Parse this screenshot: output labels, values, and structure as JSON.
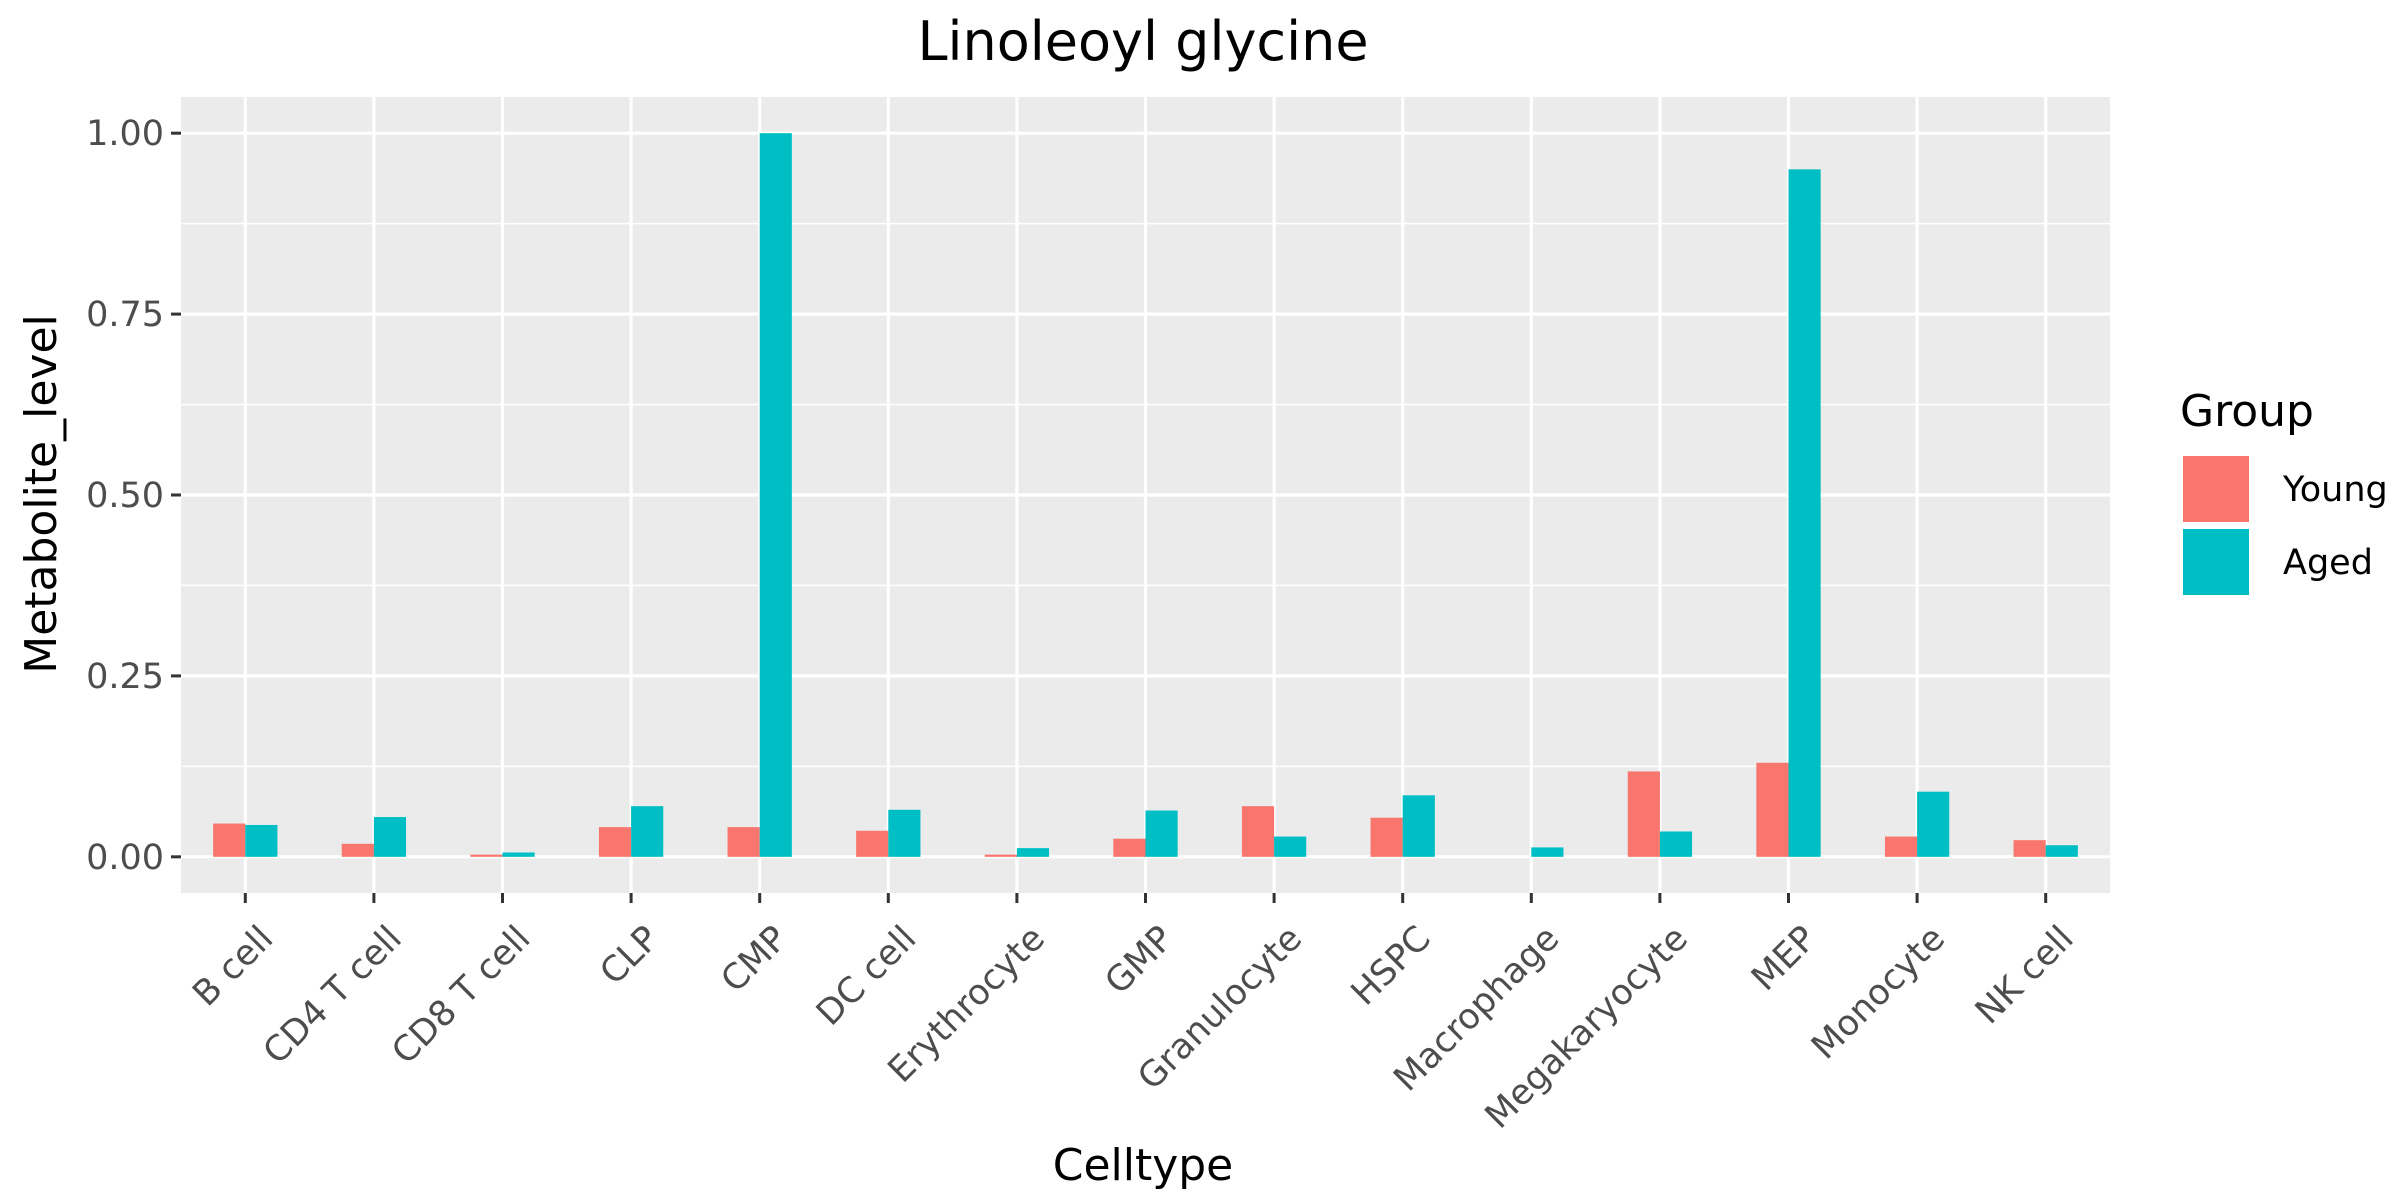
{
  "chart_data": {
    "type": "bar",
    "title": "Linoleoyl glycine",
    "xlabel": "Celltype",
    "ylabel": "Metabolite_level",
    "categories": [
      "B cell",
      "CD4 T cell",
      "CD8 T cell",
      "CLP",
      "CMP",
      "DC cell",
      "Erythrocyte",
      "GMP",
      "Granulocyte",
      "HSPC",
      "Macrophage",
      "Megakaryocyte",
      "MEP",
      "Monocyte",
      "NK cell"
    ],
    "series": [
      {
        "name": "Young",
        "color": "#F8766D",
        "values": [
          0.046,
          0.018,
          0.003,
          0.041,
          0.041,
          0.036,
          0.003,
          0.025,
          0.07,
          0.054,
          0.0,
          0.118,
          0.13,
          0.028,
          0.023
        ]
      },
      {
        "name": "Aged",
        "color": "#00BFC4",
        "values": [
          0.044,
          0.055,
          0.006,
          0.07,
          1.0,
          0.065,
          0.012,
          0.064,
          0.028,
          0.085,
          0.013,
          0.035,
          0.95,
          0.09,
          0.016
        ]
      }
    ],
    "ylim": [
      -0.05,
      1.05
    ],
    "yticks": [
      0.0,
      0.25,
      0.5,
      0.75,
      1.0
    ],
    "ytick_labels": [
      "0.00",
      "0.25",
      "0.50",
      "0.75",
      "1.00"
    ],
    "grid": true,
    "legend": {
      "title": "Group",
      "position": "right"
    },
    "panel_background": "#EBEBEB",
    "grid_color": "#FFFFFF"
  }
}
